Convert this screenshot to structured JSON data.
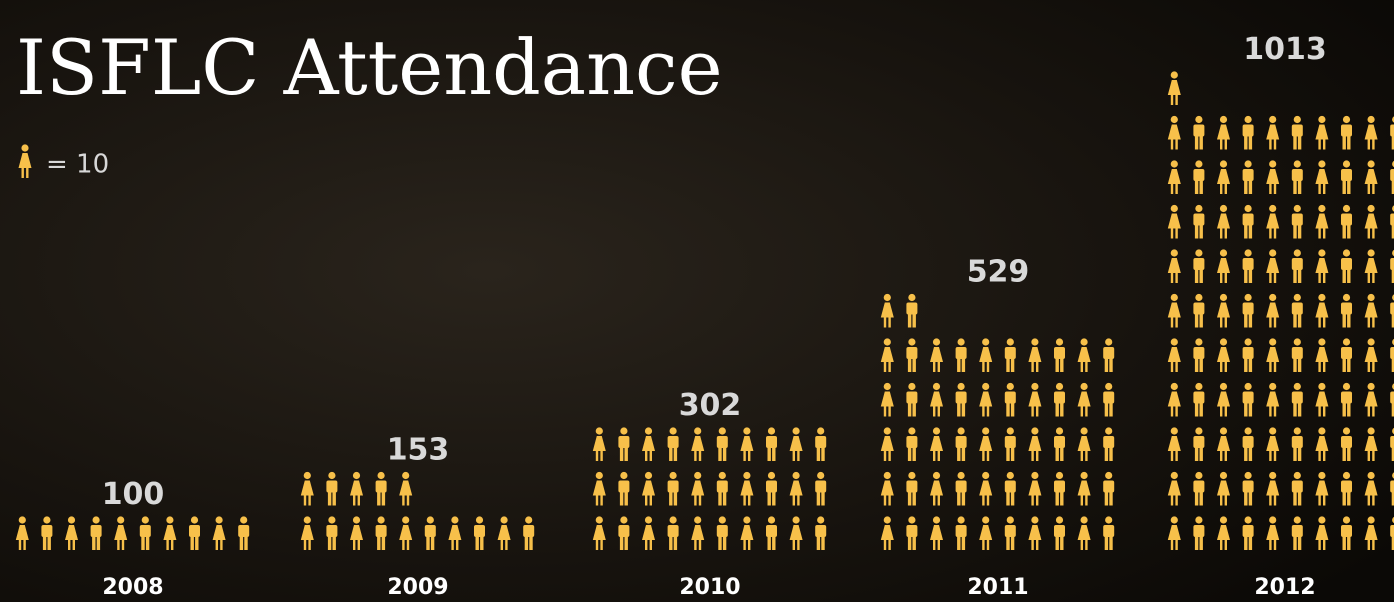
{
  "chart_data": {
    "type": "pictograph",
    "title": "ISFLC Attendance",
    "legend": {
      "label": "= 10",
      "value": 10
    },
    "categories": [
      "2008",
      "2009",
      "2010",
      "2011",
      "2012"
    ],
    "values": [
      100,
      153,
      302,
      529,
      1013
    ],
    "color": "#f7c04a"
  }
}
